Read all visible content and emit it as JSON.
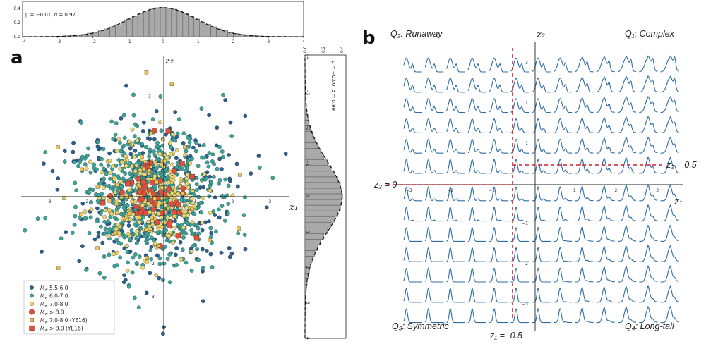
{
  "panel_a": {
    "letter": "a",
    "x_axis_label": "z₁",
    "y_axis_label": "z₂",
    "top_hist_stat": "μ = −0.01, σ = 0.97",
    "right_hist_stat": "μ = −0.00, σ = 0.99"
  },
  "panel_b": {
    "letter": "b",
    "x_axis_label": "z₁",
    "y_axis_label": "z₂",
    "quadrants": {
      "q1": "Q₁: Complex",
      "q2": "Q₂: Runaway",
      "q3": "Q₃: Symmetric",
      "q4": "Q₄: Long-tail"
    },
    "z2_zero_label": "z₂ = 0",
    "z2_half_label": "z₂ = 0.5",
    "z1_label": "z₁ = -0.5"
  },
  "chart_data": [
    {
      "id": "top-histogram",
      "type": "bar",
      "title": "",
      "xlabel": "",
      "ylabel": "",
      "x_ticks": [
        "−4",
        "−3",
        "−2",
        "−1",
        "0",
        "1",
        "2",
        "3",
        "4"
      ],
      "y_ticks": [
        "0.0",
        "0.2",
        "0.4"
      ],
      "xlim": [
        -4,
        4
      ],
      "ylim": [
        0,
        0.5
      ],
      "annotation": "μ = −0.01, σ = 0.97",
      "fit_curve": {
        "type": "normal",
        "mu": -0.01,
        "sigma": 0.97
      },
      "bin_width": 0.16,
      "bin_centers": [
        -3.2,
        -3.04,
        -2.88,
        -2.72,
        -2.56,
        -2.4,
        -2.24,
        -2.08,
        -1.92,
        -1.76,
        -1.6,
        -1.44,
        -1.28,
        -1.12,
        -0.96,
        -0.8,
        -0.64,
        -0.48,
        -0.32,
        -0.16,
        0.0,
        0.16,
        0.32,
        0.48,
        0.64,
        0.8,
        0.96,
        1.12,
        1.28,
        1.44,
        1.6,
        1.76,
        1.92,
        2.08,
        2.24,
        2.4,
        2.56,
        2.72,
        2.88,
        3.04,
        3.2
      ],
      "values": [
        0.003,
        0.005,
        0.008,
        0.012,
        0.017,
        0.025,
        0.035,
        0.05,
        0.065,
        0.085,
        0.11,
        0.14,
        0.17,
        0.21,
        0.25,
        0.29,
        0.33,
        0.36,
        0.39,
        0.41,
        0.415,
        0.405,
        0.39,
        0.36,
        0.33,
        0.29,
        0.25,
        0.21,
        0.175,
        0.14,
        0.11,
        0.085,
        0.06,
        0.045,
        0.033,
        0.023,
        0.016,
        0.011,
        0.007,
        0.004,
        0.002
      ]
    },
    {
      "id": "right-histogram",
      "type": "bar",
      "orientation": "horizontal",
      "title": "",
      "xlabel": "",
      "ylabel": "",
      "x_ticks": [
        "0.0",
        "0.2",
        "0.4"
      ],
      "ylim": [
        -4,
        4
      ],
      "annotation": "μ = −0.00, σ = 0.99",
      "fit_curve": {
        "type": "normal",
        "mu": 0.0,
        "sigma": 0.99
      },
      "bin_width": 0.16,
      "bin_centers": [
        -3.2,
        -3.04,
        -2.88,
        -2.72,
        -2.56,
        -2.4,
        -2.24,
        -2.08,
        -1.92,
        -1.76,
        -1.6,
        -1.44,
        -1.28,
        -1.12,
        -0.96,
        -0.8,
        -0.64,
        -0.48,
        -0.32,
        -0.16,
        0.0,
        0.16,
        0.32,
        0.48,
        0.64,
        0.8,
        0.96,
        1.12,
        1.28,
        1.44,
        1.6,
        1.76,
        1.92,
        2.08,
        2.24,
        2.4,
        2.56,
        2.72,
        2.88,
        3.04,
        3.2
      ],
      "values": [
        0.003,
        0.004,
        0.007,
        0.011,
        0.016,
        0.024,
        0.034,
        0.048,
        0.063,
        0.083,
        0.108,
        0.138,
        0.168,
        0.205,
        0.245,
        0.285,
        0.325,
        0.36,
        0.385,
        0.405,
        0.41,
        0.405,
        0.385,
        0.36,
        0.325,
        0.285,
        0.245,
        0.205,
        0.17,
        0.138,
        0.108,
        0.083,
        0.06,
        0.045,
        0.032,
        0.022,
        0.015,
        0.01,
        0.007,
        0.004,
        0.002
      ]
    },
    {
      "id": "latent-scatter",
      "type": "scatter",
      "title": "",
      "xlabel": "z₁",
      "ylabel": "z₂",
      "xlim": [
        -3.6,
        3.6
      ],
      "ylim": [
        -4.2,
        4.2
      ],
      "x_ticks": [
        "−3",
        "−2",
        "−1",
        "0",
        "1",
        "2",
        "3"
      ],
      "y_ticks": [
        "−3",
        "−2",
        "−1",
        "0",
        "1",
        "2",
        "3"
      ],
      "legend_position": "lower-left",
      "series": [
        {
          "name": "Mw 5.5-6.0",
          "legend": "Mw 5.5-6.0",
          "marker": "circle",
          "color": "#2b5f92",
          "count": 260,
          "seed": 11,
          "sigma": 1.15
        },
        {
          "name": "Mw 6.0-7.0",
          "legend": "Mw 6.0-7.0",
          "marker": "circle",
          "color": "#39a59a",
          "count": 720,
          "seed": 23,
          "sigma": 0.95
        },
        {
          "name": "Mw 7.0-8.0",
          "legend": "Mw 7.0-8.0",
          "marker": "circle",
          "color": "#ecd46a",
          "count": 260,
          "seed": 37,
          "sigma": 0.75
        },
        {
          "name": "Mw > 8.0",
          "legend": "Mw > 8.0",
          "marker": "circle-large",
          "color": "#e0503a",
          "count": 45,
          "seed": 41,
          "sigma": 0.55
        },
        {
          "name": "Mw 7.0-8.0 (YE16)",
          "legend": "Mw 7.0-8.0 (YE16)",
          "marker": "square",
          "color": "#ecc454",
          "count": 40,
          "seed": 53,
          "sigma": 1.2
        },
        {
          "name": "Mw > 8.0 (YE16)",
          "legend": "Mw > 8.0 (YE16)",
          "marker": "square-large",
          "color": "#e0503a",
          "count": 10,
          "seed": 61,
          "sigma": 0.9
        }
      ]
    },
    {
      "id": "latent-grid",
      "type": "line",
      "title": "",
      "xlabel": "z₁",
      "ylabel": "z₂",
      "grid": "13 columns × 13 rows of decoded waveforms",
      "columns": 13,
      "rows": 13,
      "z1_range": [
        -3,
        3
      ],
      "z2_range": [
        -3,
        3
      ],
      "x_ticks": [
        "−3",
        "−2",
        "−1",
        "0",
        "1",
        "2",
        "3"
      ],
      "y_ticks": [
        "−3",
        "−2",
        "−1",
        "0",
        "1",
        "2",
        "3"
      ],
      "reference_lines": {
        "z1": -0.5,
        "z2_left": 0,
        "z2_right": 0.5
      },
      "line_color": "#2e6da4",
      "reference_color": "#d11f2e"
    }
  ]
}
